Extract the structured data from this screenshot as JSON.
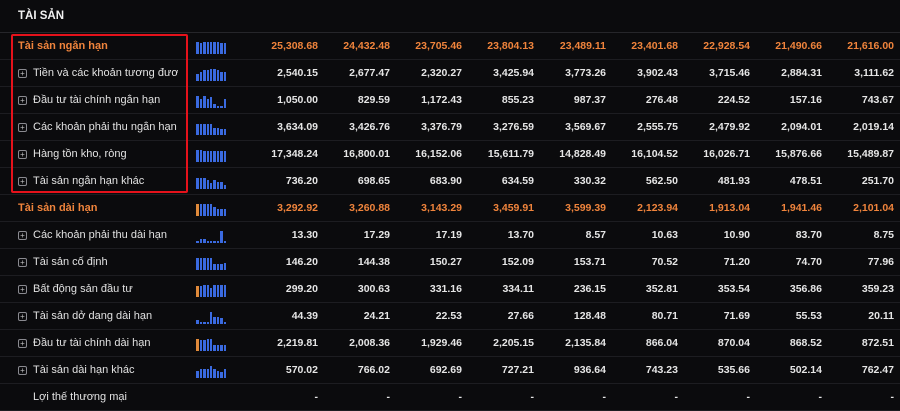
{
  "section_title": "TÀI SẢN",
  "rows": [
    {
      "label": "Tài sản ngắn hạn",
      "group": true,
      "spark": [
        7,
        6,
        7,
        7,
        7,
        7,
        7,
        6,
        6
      ],
      "orange": [],
      "values": [
        "25,308.68",
        "24,432.48",
        "23,705.46",
        "23,804.13",
        "23,489.11",
        "23,401.68",
        "22,928.54",
        "21,490.66",
        "21,616.00"
      ]
    },
    {
      "label": "Tiền và các khoản tương đương tiền",
      "group": false,
      "spark": [
        4,
        5,
        6,
        6,
        7,
        7,
        6,
        5,
        5
      ],
      "orange": [],
      "values": [
        "2,540.15",
        "2,677.47",
        "2,320.27",
        "3,425.94",
        "3,773.26",
        "3,902.43",
        "3,715.46",
        "2,884.31",
        "3,111.62"
      ]
    },
    {
      "label": "Đầu tư tài chính ngắn hạn",
      "group": false,
      "spark": [
        7,
        5,
        7,
        5,
        6,
        2,
        1,
        1,
        5
      ],
      "orange": [],
      "values": [
        "1,050.00",
        "829.59",
        "1,172.43",
        "855.23",
        "987.37",
        "276.48",
        "224.52",
        "157.16",
        "743.67"
      ]
    },
    {
      "label": "Các khoản phải thu ngắn hạn",
      "group": false,
      "spark": [
        6,
        6,
        6,
        6,
        6,
        4,
        4,
        3,
        3
      ],
      "orange": [],
      "values": [
        "3,634.09",
        "3,426.76",
        "3,376.79",
        "3,276.59",
        "3,569.67",
        "2,555.75",
        "2,479.92",
        "2,094.01",
        "2,019.14"
      ]
    },
    {
      "label": "Hàng tồn kho, ròng",
      "group": false,
      "spark": [
        7,
        7,
        6,
        6,
        6,
        6,
        6,
        6,
        6
      ],
      "orange": [],
      "values": [
        "17,348.24",
        "16,800.01",
        "16,152.06",
        "15,611.79",
        "14,828.49",
        "16,104.52",
        "16,026.71",
        "15,876.66",
        "15,489.87"
      ]
    },
    {
      "label": "Tài sản ngắn hạn khác",
      "group": false,
      "spark": [
        6,
        6,
        6,
        5,
        3,
        5,
        4,
        4,
        2
      ],
      "orange": [],
      "values": [
        "736.20",
        "698.65",
        "683.90",
        "634.59",
        "330.32",
        "562.50",
        "481.93",
        "478.51",
        "251.70"
      ]
    },
    {
      "label": "Tài sản dài hạn",
      "group": true,
      "spark": [
        7,
        7,
        7,
        7,
        7,
        5,
        4,
        4,
        4
      ],
      "orange": [
        0
      ],
      "values": [
        "3,292.92",
        "3,260.88",
        "3,143.29",
        "3,459.91",
        "3,599.39",
        "2,123.94",
        "1,913.04",
        "1,941.46",
        "2,101.04"
      ]
    },
    {
      "label": "Các khoản phải thu dài hạn",
      "group": false,
      "spark": [
        1,
        2,
        2,
        1,
        1,
        1,
        1,
        7,
        1
      ],
      "orange": [],
      "values": [
        "13.30",
        "17.29",
        "17.19",
        "13.70",
        "8.57",
        "10.63",
        "10.90",
        "83.70",
        "8.75"
      ]
    },
    {
      "label": "Tài sản cố định",
      "group": false,
      "spark": [
        7,
        7,
        7,
        7,
        7,
        3,
        3,
        3,
        4
      ],
      "orange": [],
      "values": [
        "146.20",
        "144.38",
        "150.27",
        "152.09",
        "153.71",
        "70.52",
        "71.20",
        "74.70",
        "77.96"
      ]
    },
    {
      "label": "Bất động sản đầu tư",
      "group": false,
      "spark": [
        6,
        6,
        7,
        7,
        5,
        7,
        7,
        7,
        7
      ],
      "orange": [
        0
      ],
      "values": [
        "299.20",
        "300.63",
        "331.16",
        "334.11",
        "236.15",
        "352.81",
        "353.54",
        "356.86",
        "359.23"
      ]
    },
    {
      "label": "Tài sản dở dang dài hạn",
      "group": false,
      "spark": [
        2,
        1,
        1,
        1,
        7,
        4,
        4,
        3,
        1
      ],
      "orange": [],
      "values": [
        "44.39",
        "24.21",
        "22.53",
        "27.66",
        "128.48",
        "80.71",
        "71.69",
        "55.53",
        "20.11"
      ]
    },
    {
      "label": "Đầu tư tài chính dài hạn",
      "group": false,
      "spark": [
        7,
        6,
        6,
        7,
        7,
        3,
        3,
        3,
        3
      ],
      "orange": [
        0
      ],
      "values": [
        "2,219.81",
        "2,008.36",
        "1,929.46",
        "2,205.15",
        "2,135.84",
        "866.04",
        "870.04",
        "868.52",
        "872.51"
      ]
    },
    {
      "label": "Tài sản dài hạn khác",
      "group": false,
      "spark": [
        4,
        5,
        5,
        5,
        7,
        5,
        4,
        3,
        5
      ],
      "orange": [],
      "values": [
        "570.02",
        "766.02",
        "692.69",
        "727.21",
        "936.64",
        "743.23",
        "535.66",
        "502.14",
        "762.47"
      ]
    },
    {
      "label": "Lợi thế thương mại",
      "group": false,
      "noplus": true,
      "spark": [],
      "orange": [],
      "values": [
        "-",
        "-",
        "-",
        "-",
        "-",
        "-",
        "-",
        "-",
        "-"
      ]
    }
  ]
}
